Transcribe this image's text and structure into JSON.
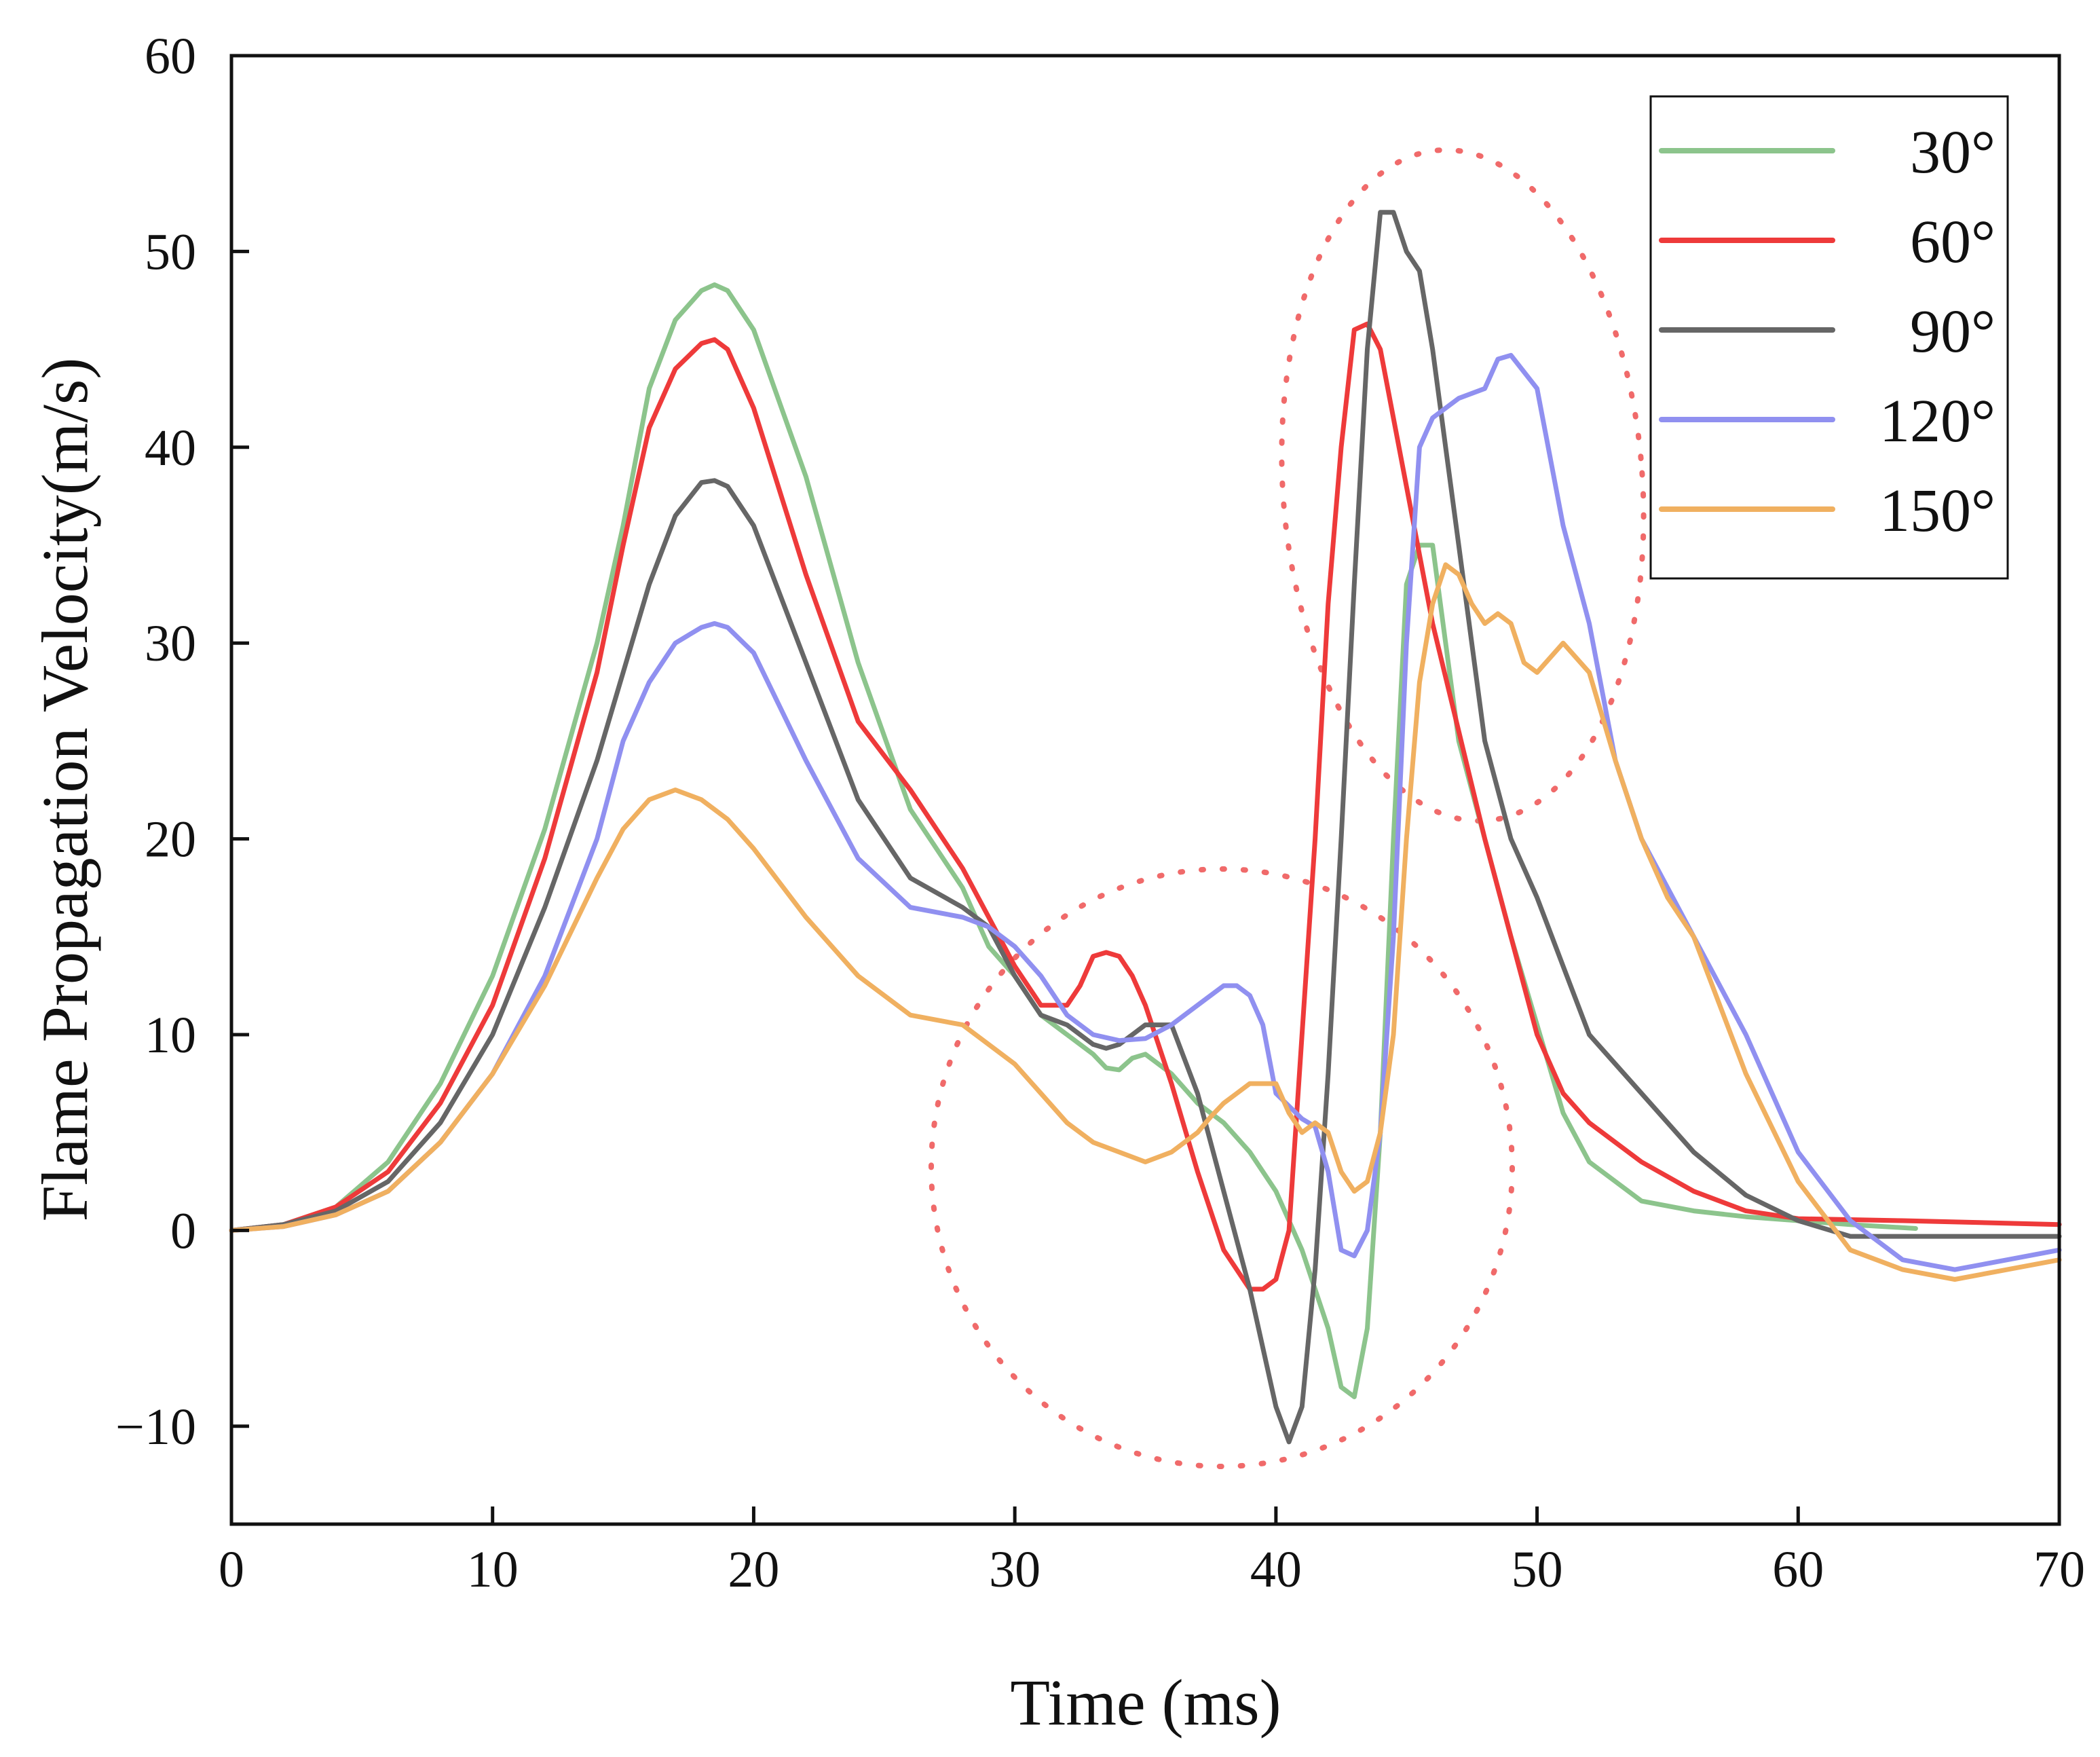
{
  "chart_data": {
    "type": "line",
    "title": "",
    "xlabel": "Time (ms)",
    "ylabel": "Flame Propagation Velocity(m/s)",
    "xlim": [
      0,
      70
    ],
    "ylim": [
      -15,
      60
    ],
    "xticks": [
      0,
      10,
      20,
      30,
      40,
      50,
      60,
      70
    ],
    "yticks": [
      -10,
      0,
      10,
      20,
      30,
      40,
      50,
      60
    ],
    "xtick_labels": [
      "0",
      "10",
      "20",
      "30",
      "40",
      "50",
      "60",
      "70"
    ],
    "ytick_labels": [
      "−10",
      "0",
      "10",
      "20",
      "30",
      "40",
      "50",
      "60"
    ],
    "grid": false,
    "legend_position": "top-right",
    "series": [
      {
        "name": "30°",
        "color": "#8cc48c",
        "x": [
          0,
          2,
          4,
          6,
          8,
          10,
          12,
          14,
          15,
          16,
          17,
          18,
          18.5,
          19,
          20,
          22,
          24,
          26,
          28,
          29,
          30,
          31,
          32,
          33,
          33.5,
          34,
          34.5,
          35,
          36,
          37,
          38,
          39,
          40,
          41,
          42,
          42.5,
          43,
          43.5,
          44,
          44.5,
          45,
          45.5,
          46,
          46.5,
          47,
          48,
          49,
          50,
          51,
          52,
          54,
          56,
          58,
          60,
          62,
          64.5
        ],
        "y": [
          0,
          0.3,
          1.2,
          3.5,
          7.5,
          13,
          20.5,
          30,
          36,
          43,
          46.5,
          48,
          48.3,
          48,
          46,
          38.5,
          29,
          21.5,
          17.5,
          14.5,
          13,
          11,
          10,
          9,
          8.3,
          8.2,
          8.8,
          9,
          8,
          6.5,
          5.5,
          4,
          2,
          -1,
          -5,
          -8,
          -8.5,
          -5,
          5,
          20,
          33,
          35,
          35,
          30,
          25,
          20,
          15,
          10.5,
          6,
          3.5,
          1.5,
          1,
          0.7,
          0.5,
          0.3,
          0.1
        ]
      },
      {
        "name": "60°",
        "color": "#ee3a3a",
        "x": [
          0,
          2,
          4,
          6,
          8,
          10,
          12,
          14,
          15,
          16,
          17,
          18,
          18.5,
          19,
          20,
          22,
          24,
          26,
          27,
          28,
          29,
          30,
          31,
          32,
          32.5,
          33,
          33.5,
          34,
          34.5,
          35,
          36,
          37,
          38,
          39,
          39.5,
          40,
          40.5,
          41,
          41.5,
          42,
          42.5,
          43,
          43.5,
          44,
          45,
          46,
          47,
          48,
          49,
          50,
          51,
          52,
          54,
          56,
          58,
          60,
          64,
          70
        ],
        "y": [
          0,
          0.3,
          1.2,
          3,
          6.5,
          11.5,
          19,
          28.5,
          35,
          41,
          44,
          45.3,
          45.5,
          45,
          42,
          33.5,
          26,
          22.5,
          20.5,
          18.5,
          16,
          13.5,
          11.5,
          11.5,
          12.5,
          14,
          14.2,
          14,
          13,
          11.5,
          7.5,
          3,
          -1,
          -3,
          -3,
          -2.5,
          0,
          10,
          20,
          32,
          40,
          46,
          46.3,
          45,
          38,
          31,
          25.5,
          20,
          15,
          10,
          7,
          5.5,
          3.5,
          2,
          1,
          0.6,
          0.5,
          0.3
        ]
      },
      {
        "name": "90°",
        "color": "#666666",
        "x": [
          0,
          2,
          4,
          6,
          8,
          10,
          12,
          14,
          15,
          16,
          17,
          18,
          18.5,
          19,
          20,
          22,
          24,
          26,
          28,
          29,
          30,
          31,
          32,
          33,
          33.5,
          34,
          34.5,
          35,
          36,
          37,
          38,
          39,
          40,
          40.5,
          41,
          41.5,
          42,
          42.5,
          43,
          43.5,
          44,
          44.5,
          45,
          45.5,
          46,
          46.5,
          47,
          48,
          49,
          50,
          51,
          52,
          54,
          56,
          58,
          60,
          62,
          70
        ],
        "y": [
          0,
          0.3,
          1,
          2.5,
          5.5,
          10,
          16.5,
          24,
          28.5,
          33,
          36.5,
          38.2,
          38.3,
          38,
          36,
          29,
          22,
          18,
          16.5,
          15.5,
          13,
          11,
          10.5,
          9.5,
          9.3,
          9.5,
          10,
          10.5,
          10.5,
          7,
          2,
          -3,
          -9,
          -10.8,
          -9,
          -2,
          8,
          20,
          33,
          45,
          52,
          52,
          50,
          49,
          45,
          40,
          35,
          25,
          20,
          17,
          13.5,
          10,
          7,
          4,
          1.8,
          0.5,
          -0.3,
          -0.3
        ]
      },
      {
        "name": "120°",
        "color": "#9090f0",
        "x": [
          0,
          2,
          4,
          6,
          8,
          10,
          12,
          14,
          15,
          16,
          17,
          18,
          18.5,
          19,
          20,
          22,
          24,
          26,
          28,
          29,
          30,
          31,
          32,
          33,
          34,
          35,
          36,
          37,
          38,
          38.5,
          39,
          39.5,
          40,
          41,
          41.5,
          42,
          42.5,
          43,
          43.5,
          44,
          44.5,
          45,
          45.5,
          46,
          47,
          48,
          48.5,
          49,
          50,
          51,
          52,
          53,
          54,
          56,
          58,
          60,
          62,
          64,
          66,
          68,
          70
        ],
        "y": [
          0,
          0.2,
          0.8,
          2,
          4.5,
          8,
          13,
          20,
          25,
          28,
          30,
          30.8,
          31,
          30.8,
          29.5,
          24,
          19,
          16.5,
          16,
          15.5,
          14.5,
          13,
          11,
          10,
          9.7,
          9.8,
          10.5,
          11.5,
          12.5,
          12.5,
          12,
          10.5,
          7,
          5.7,
          5.3,
          3,
          -1,
          -1.3,
          0,
          5,
          15,
          30,
          40,
          41.5,
          42.5,
          43,
          44.5,
          44.7,
          43,
          36,
          31,
          24,
          20,
          15,
          10,
          4,
          0.5,
          -1.5,
          -2,
          -1.5,
          -1
        ]
      },
      {
        "name": "150°",
        "color": "#f0b060",
        "x": [
          0,
          2,
          4,
          6,
          8,
          10,
          12,
          14,
          15,
          16,
          17,
          18,
          19,
          20,
          22,
          24,
          26,
          28,
          29,
          30,
          31,
          32,
          33,
          34,
          35,
          36,
          37,
          37.5,
          38,
          38.5,
          39,
          40,
          40.5,
          41,
          41.5,
          42,
          42.5,
          43,
          43.5,
          44,
          44.5,
          45,
          45.5,
          46,
          46.5,
          47,
          47.5,
          48,
          48.5,
          49,
          49.5,
          50,
          51,
          52,
          53,
          54,
          55,
          56,
          58,
          60,
          62,
          64,
          66,
          68,
          70
        ],
        "y": [
          0,
          0.2,
          0.8,
          2,
          4.5,
          8,
          12.5,
          18,
          20.5,
          22,
          22.5,
          22,
          21,
          19.5,
          16,
          13,
          11,
          10.5,
          9.5,
          8.5,
          7,
          5.5,
          4.5,
          4,
          3.5,
          4,
          5,
          5.8,
          6.5,
          7,
          7.5,
          7.5,
          6,
          5,
          5.5,
          5,
          3,
          2,
          2.5,
          5,
          10,
          20,
          28,
          32,
          34,
          33.5,
          32,
          31,
          31.5,
          31,
          29,
          28.5,
          30,
          28.5,
          24,
          20,
          17,
          15,
          8,
          2.5,
          -1,
          -2,
          -2.5,
          -2,
          -1.5
        ]
      }
    ]
  }
}
